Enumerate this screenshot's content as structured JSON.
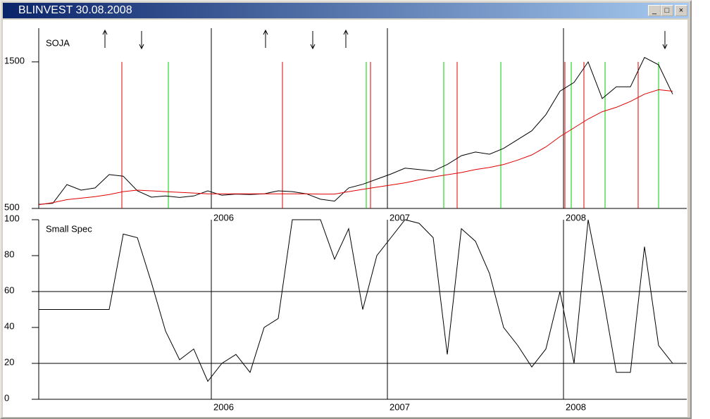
{
  "window": {
    "title": "BLINVEST  30.08.2008"
  },
  "chart_data": [
    {
      "type": "line",
      "x": [
        2005.02,
        2005.1,
        2005.18,
        2005.26,
        2005.34,
        2005.42,
        2005.5,
        2005.58,
        2005.66,
        2005.74,
        2005.82,
        2005.9,
        2005.98,
        2006.06,
        2006.14,
        2006.22,
        2006.3,
        2006.38,
        2006.46,
        2006.54,
        2006.62,
        2006.7,
        2006.78,
        2006.86,
        2006.94,
        2007.02,
        2007.1,
        2007.18,
        2007.26,
        2007.34,
        2007.42,
        2007.5,
        2007.58,
        2007.66,
        2007.74,
        2007.82,
        2007.9,
        2007.98,
        2008.06,
        2008.14,
        2008.22,
        2008.3,
        2008.38,
        2008.46,
        2008.54,
        2008.62
      ],
      "series": [
        {
          "name": "SOJA",
          "color": "#000000",
          "values": [
            528,
            535,
            663,
            625,
            640,
            731,
            720,
            620,
            577,
            585,
            575,
            585,
            620,
            590,
            598,
            595,
            600,
            620,
            615,
            600,
            563,
            550,
            640,
            665,
            700,
            735,
            775,
            765,
            755,
            800,
            860,
            885,
            870,
            910,
            970,
            1030,
            1140,
            1300,
            1360,
            1500,
            1250,
            1330,
            1330,
            1530,
            1480,
            1280
          ]
        },
        {
          "color": "#e00000",
          "values": [
            525,
            540,
            560,
            570,
            580,
            595,
            615,
            625,
            620,
            615,
            610,
            605,
            600,
            600,
            600,
            600,
            600,
            600,
            600,
            600,
            598,
            598,
            615,
            630,
            645,
            660,
            675,
            695,
            715,
            730,
            745,
            765,
            780,
            800,
            830,
            865,
            920,
            990,
            1050,
            1110,
            1160,
            1190,
            1230,
            1280,
            1310,
            1300
          ]
        }
      ],
      "xlim": [
        2005.02,
        2008.7
      ],
      "xticks": [
        2006,
        2007,
        2008
      ],
      "ylim": [
        500,
        1730
      ],
      "yticks": [
        500,
        1500
      ],
      "sell_signals": {
        "color": "#e00000",
        "x": [
          2005.492,
          2006.404,
          2006.904,
          2007.396,
          2008.008,
          2008.116,
          2008.424
        ]
      },
      "buy_signals": {
        "color": "#00d000",
        "x": [
          2005.756,
          2006.88,
          2007.32,
          2007.644,
          2008.044,
          2008.236,
          2008.54
        ]
      },
      "up_arrows": [
        2005.396,
        2006.308,
        2006.764
      ],
      "down_arrows": [
        2005.604,
        2006.576,
        2008.576
      ]
    },
    {
      "type": "line",
      "x": [
        2005.02,
        2005.1,
        2005.18,
        2005.26,
        2005.34,
        2005.42,
        2005.5,
        2005.58,
        2005.66,
        2005.74,
        2005.82,
        2005.9,
        2005.98,
        2006.06,
        2006.14,
        2006.22,
        2006.3,
        2006.38,
        2006.46,
        2006.54,
        2006.62,
        2006.7,
        2006.78,
        2006.86,
        2006.94,
        2007.02,
        2007.1,
        2007.18,
        2007.26,
        2007.34,
        2007.42,
        2007.5,
        2007.58,
        2007.66,
        2007.74,
        2007.82,
        2007.9,
        2007.98,
        2008.06,
        2008.14,
        2008.22,
        2008.3,
        2008.38,
        2008.46,
        2008.54,
        2008.62
      ],
      "series": [
        {
          "name": "Small Spec",
          "color": "#000000",
          "values": [
            50,
            50,
            50,
            50,
            50,
            50,
            92,
            90,
            65,
            38,
            22,
            28,
            10,
            20,
            25,
            15,
            40,
            45,
            100,
            100,
            100,
            78,
            95,
            50,
            80,
            90,
            100,
            98,
            90,
            25,
            95,
            88,
            70,
            40,
            30,
            18,
            28,
            60,
            20,
            100,
            60,
            15,
            15,
            85,
            30,
            20
          ]
        }
      ],
      "xlim": [
        2005.02,
        2008.7
      ],
      "xticks": [
        2006,
        2007,
        2008
      ],
      "ylim": [
        0,
        100
      ],
      "yticks": [
        0,
        20,
        40,
        60,
        80,
        100
      ],
      "hlines": [
        20,
        60
      ]
    }
  ]
}
